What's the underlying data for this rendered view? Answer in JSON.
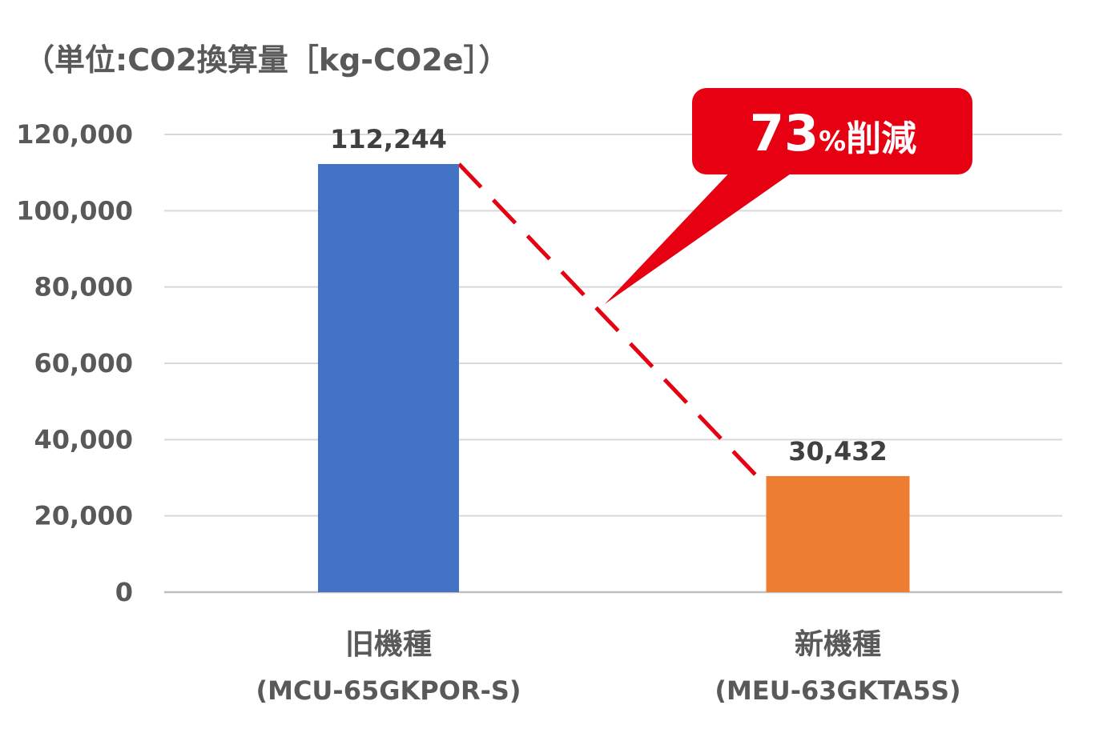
{
  "chart_data": {
    "type": "bar",
    "unit_label": "（単位:CO2換算量［kg-CO2e］）",
    "categories": [
      {
        "name": "旧機種",
        "model": "(MCU-65GKPOR-S)"
      },
      {
        "name": "新機種",
        "model": "(MEU-63GKTA5S)"
      }
    ],
    "values": [
      112244,
      30432
    ],
    "value_labels": [
      "112,244",
      "30,432"
    ],
    "ylim": [
      0,
      120000
    ],
    "y_ticks": [
      0,
      20000,
      40000,
      60000,
      80000,
      100000,
      120000
    ],
    "y_tick_labels": [
      "0",
      "20,000",
      "40,000",
      "60,000",
      "80,000",
      "100,000",
      "120,000"
    ],
    "grid": true,
    "bar_colors": [
      "#4472C4",
      "#ED7D31"
    ],
    "connector": {
      "style": "dashed",
      "color": "#E60012"
    },
    "callout": {
      "number": "73",
      "percent": "%",
      "word": "削減",
      "color": "#E60012"
    }
  }
}
